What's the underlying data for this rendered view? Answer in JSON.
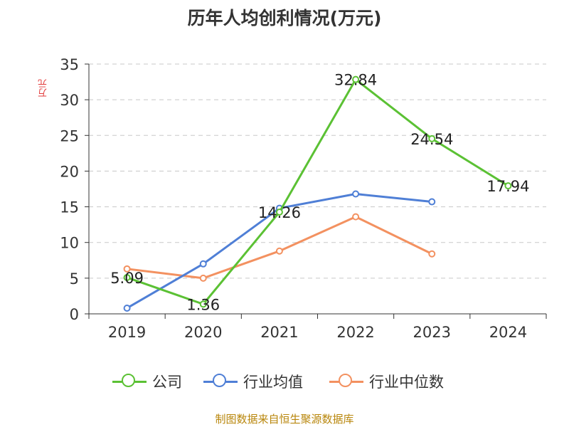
{
  "chart_data": {
    "type": "line",
    "title": "历年人均创利情况(万元)",
    "ylabel": "万元",
    "xlabel": "",
    "categories": [
      "2019",
      "2020",
      "2021",
      "2022",
      "2023",
      "2024"
    ],
    "ylim": [
      0,
      35
    ],
    "yticks": [
      "0",
      "5",
      "10",
      "15",
      "20",
      "25",
      "30",
      "35"
    ],
    "grid": true,
    "legend_position": "bottom",
    "series": [
      {
        "name": "公司",
        "color": "#5bc134",
        "values": [
          5.09,
          1.36,
          14.26,
          32.84,
          24.54,
          17.94
        ],
        "labels": [
          "5.09",
          "1.36",
          "14.26",
          "32.84",
          "24.54",
          "17.94"
        ]
      },
      {
        "name": "行业均值",
        "color": "#4f7fd6",
        "values": [
          0.8,
          7.0,
          14.8,
          16.8,
          15.7,
          null
        ]
      },
      {
        "name": "行业中位数",
        "color": "#f39160",
        "values": [
          6.3,
          5.0,
          8.8,
          13.6,
          8.4,
          null
        ]
      }
    ]
  },
  "footer": {
    "source": "制图数据来自恒生聚源数据库"
  }
}
